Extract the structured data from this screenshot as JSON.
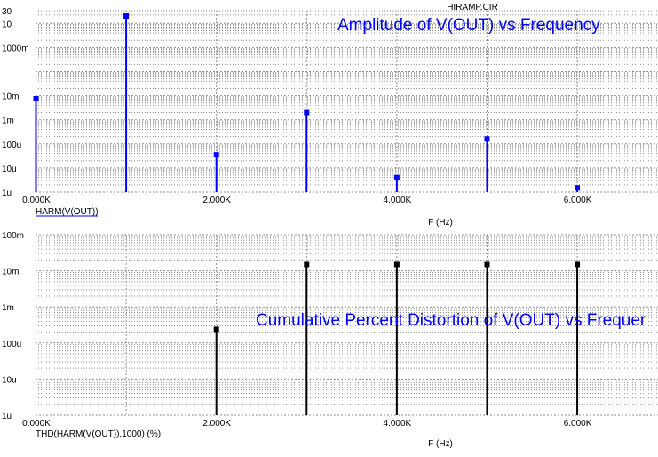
{
  "file_title": "HIRAMP.CIR",
  "colors": {
    "trace_top": "#0000ff",
    "trace_bottom": "#000000",
    "title": "#0000ff",
    "grid": "#909090"
  },
  "chart_data": [
    {
      "type": "stem",
      "title": "Amplitude of V(OUT) vs Frequency",
      "trace_label": "HARM(V(OUT))",
      "xlabel": "F (Hz)",
      "x_tick_labels": [
        "0.000K",
        "2.000K",
        "4.000K",
        "6.000K"
      ],
      "x_ticks": [
        0,
        2000,
        4000,
        6000
      ],
      "xlim": [
        0,
        6900
      ],
      "y_scale": "log",
      "y_tick_labels": [
        "1u",
        "10u",
        "100u",
        "1m",
        "10m",
        "1000m",
        "10",
        "30"
      ],
      "y_ticks": [
        1e-06,
        1e-05,
        0.0001,
        0.001,
        0.01,
        1,
        10,
        30
      ],
      "grid": true,
      "x": [
        0,
        1000,
        2000,
        3000,
        4000,
        5000,
        6000
      ],
      "values": [
        0.0075,
        18,
        3.5e-05,
        0.002,
        4e-06,
        0.00016,
        1.5e-06
      ]
    },
    {
      "type": "stem",
      "title": "Cumulative Percent Distortion of V(OUT) vs Frequer",
      "trace_label": "THD(HARM(V(OUT)),1000) (%)",
      "xlabel": "F (Hz)",
      "x_tick_labels": [
        "0.000K",
        "2.000K",
        "4.000K",
        "6.000K"
      ],
      "x_ticks": [
        0,
        2000,
        4000,
        6000
      ],
      "xlim": [
        0,
        6900
      ],
      "y_scale": "log",
      "y_tick_labels": [
        "1u",
        "10u",
        "100u",
        "1m",
        "10m",
        "100m"
      ],
      "y_ticks": [
        1e-06,
        1e-05,
        0.0001,
        0.001,
        0.01,
        0.1
      ],
      "grid": true,
      "x": [
        2000,
        3000,
        4000,
        5000,
        6000
      ],
      "values": [
        0.00024,
        0.015,
        0.015,
        0.015,
        0.015
      ]
    }
  ]
}
